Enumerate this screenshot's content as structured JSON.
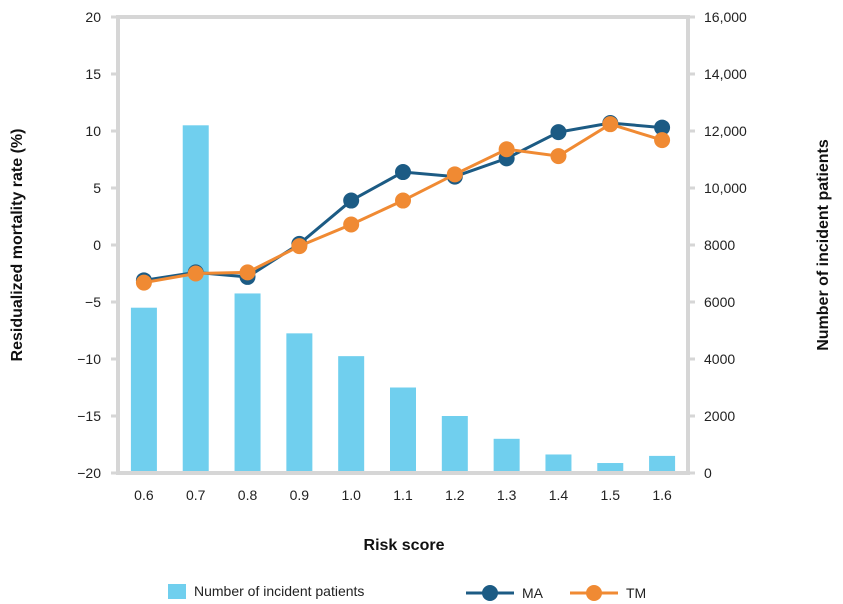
{
  "chart_data": {
    "type": "bar",
    "xlabel": "Risk score",
    "ylabel_left": "Residualized mortality rate (%)",
    "ylabel_right": "Number of incident patients",
    "categories": [
      "0.6",
      "0.7",
      "0.8",
      "0.9",
      "1.0",
      "1.1",
      "1.2",
      "1.3",
      "1.4",
      "1.5",
      "1.6"
    ],
    "ylim_left": [
      -20,
      20
    ],
    "yticks_left": [
      "20",
      "15",
      "10",
      "5",
      "0",
      "−5",
      "−10",
      "−15",
      "−20"
    ],
    "ylim_right": [
      0,
      16000
    ],
    "yticks_right": [
      "16,000",
      "14,000",
      "12,000",
      "10,000",
      "8000",
      "6000",
      "4000",
      "2000",
      "0"
    ],
    "grid": false,
    "legend_position": "bottom",
    "series": [
      {
        "name": "Number of incident patients",
        "type": "bar",
        "axis": "right",
        "color": "#70cfee",
        "values": [
          5800,
          12200,
          6300,
          4900,
          4100,
          3000,
          2000,
          1200,
          650,
          350,
          600
        ]
      },
      {
        "name": "MA",
        "type": "line",
        "axis": "left",
        "color": "#1c5b84",
        "values": [
          -3.1,
          -2.4,
          -2.8,
          0.1,
          3.9,
          6.4,
          6.0,
          7.6,
          9.9,
          10.7,
          10.3
        ]
      },
      {
        "name": "TM",
        "type": "line",
        "axis": "left",
        "color": "#f08a33",
        "values": [
          -3.3,
          -2.5,
          -2.4,
          -0.1,
          1.8,
          3.9,
          6.2,
          8.4,
          7.8,
          10.6,
          9.2
        ]
      }
    ]
  },
  "legend": {
    "items": [
      "Number of incident patients",
      "MA",
      "TM"
    ]
  }
}
